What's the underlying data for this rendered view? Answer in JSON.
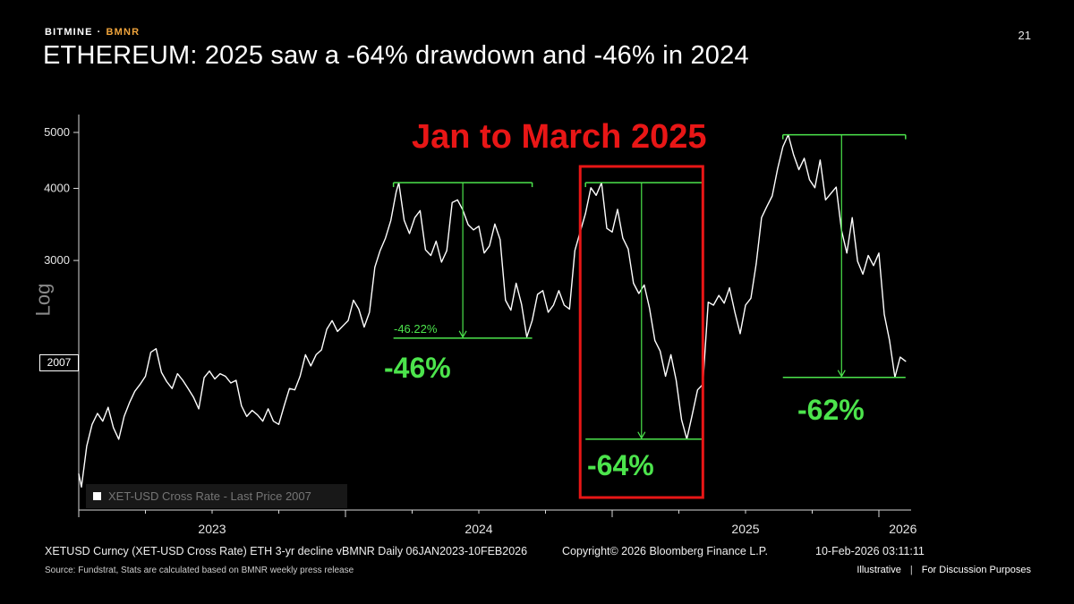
{
  "header": {
    "brand_left": "BITMINE",
    "brand_sep": "·",
    "brand_right": "BMNR",
    "page_number": "21",
    "title": "ETHEREUM: 2025 saw a -64% drawdown and -46% in 2024"
  },
  "chart_data": {
    "type": "line",
    "title": "ETHEREUM: 2025 saw a -64% drawdown and -46% in 2024",
    "series_name": "XET-USD Cross Rate - Last Price",
    "legend_label": "XET-USD Cross Rate - Last Price  2007",
    "x_axis": {
      "domain": [
        2023.0,
        2026.12
      ],
      "ticks": [
        {
          "t": 2023.5,
          "label": "2023"
        },
        {
          "t": 2024.5,
          "label": "2024"
        },
        {
          "t": 2025.5,
          "label": "2025"
        },
        {
          "t": 2026.09,
          "label": "2026"
        }
      ]
    },
    "y_axis": {
      "scale": "log",
      "label": "Log",
      "ticks": [
        5000,
        4000,
        3000
      ],
      "domain": [
        1100,
        5600
      ],
      "last_price": 2007
    },
    "points": [
      [
        2023.0,
        1280
      ],
      [
        2023.01,
        1215
      ],
      [
        2023.03,
        1430
      ],
      [
        2023.05,
        1560
      ],
      [
        2023.07,
        1630
      ],
      [
        2023.09,
        1580
      ],
      [
        2023.11,
        1670
      ],
      [
        2023.13,
        1540
      ],
      [
        2023.15,
        1470
      ],
      [
        2023.17,
        1610
      ],
      [
        2023.19,
        1700
      ],
      [
        2023.21,
        1780
      ],
      [
        2023.23,
        1830
      ],
      [
        2023.25,
        1890
      ],
      [
        2023.27,
        2080
      ],
      [
        2023.29,
        2110
      ],
      [
        2023.31,
        1920
      ],
      [
        2023.33,
        1850
      ],
      [
        2023.35,
        1800
      ],
      [
        2023.37,
        1910
      ],
      [
        2023.39,
        1860
      ],
      [
        2023.41,
        1800
      ],
      [
        2023.43,
        1740
      ],
      [
        2023.45,
        1660
      ],
      [
        2023.47,
        1880
      ],
      [
        2023.49,
        1930
      ],
      [
        2023.51,
        1870
      ],
      [
        2023.53,
        1910
      ],
      [
        2023.55,
        1890
      ],
      [
        2023.57,
        1840
      ],
      [
        2023.59,
        1860
      ],
      [
        2023.61,
        1680
      ],
      [
        2023.63,
        1610
      ],
      [
        2023.65,
        1650
      ],
      [
        2023.67,
        1620
      ],
      [
        2023.69,
        1580
      ],
      [
        2023.71,
        1660
      ],
      [
        2023.73,
        1580
      ],
      [
        2023.75,
        1560
      ],
      [
        2023.77,
        1680
      ],
      [
        2023.79,
        1800
      ],
      [
        2023.81,
        1790
      ],
      [
        2023.83,
        1890
      ],
      [
        2023.85,
        2060
      ],
      [
        2023.87,
        1970
      ],
      [
        2023.89,
        2060
      ],
      [
        2023.91,
        2100
      ],
      [
        2023.93,
        2280
      ],
      [
        2023.95,
        2360
      ],
      [
        2023.97,
        2260
      ],
      [
        2023.99,
        2310
      ],
      [
        2024.01,
        2360
      ],
      [
        2024.03,
        2560
      ],
      [
        2024.05,
        2470
      ],
      [
        2024.07,
        2300
      ],
      [
        2024.09,
        2440
      ],
      [
        2024.11,
        2920
      ],
      [
        2024.13,
        3120
      ],
      [
        2024.15,
        3280
      ],
      [
        2024.17,
        3520
      ],
      [
        2024.19,
        3940
      ],
      [
        2024.2,
        4093
      ],
      [
        2024.22,
        3520
      ],
      [
        2024.24,
        3340
      ],
      [
        2024.26,
        3560
      ],
      [
        2024.28,
        3660
      ],
      [
        2024.3,
        3130
      ],
      [
        2024.32,
        3060
      ],
      [
        2024.34,
        3240
      ],
      [
        2024.36,
        2980
      ],
      [
        2024.38,
        3120
      ],
      [
        2024.4,
        3780
      ],
      [
        2024.42,
        3820
      ],
      [
        2024.44,
        3670
      ],
      [
        2024.46,
        3460
      ],
      [
        2024.48,
        3390
      ],
      [
        2024.5,
        3440
      ],
      [
        2024.52,
        3090
      ],
      [
        2024.54,
        3180
      ],
      [
        2024.56,
        3470
      ],
      [
        2024.58,
        3260
      ],
      [
        2024.6,
        2560
      ],
      [
        2024.62,
        2460
      ],
      [
        2024.64,
        2740
      ],
      [
        2024.66,
        2520
      ],
      [
        2024.68,
        2210
      ],
      [
        2024.7,
        2360
      ],
      [
        2024.72,
        2620
      ],
      [
        2024.74,
        2660
      ],
      [
        2024.76,
        2440
      ],
      [
        2024.78,
        2510
      ],
      [
        2024.8,
        2660
      ],
      [
        2024.82,
        2510
      ],
      [
        2024.84,
        2470
      ],
      [
        2024.86,
        3120
      ],
      [
        2024.88,
        3360
      ],
      [
        2024.9,
        3620
      ],
      [
        2024.92,
        4010
      ],
      [
        2024.94,
        3890
      ],
      [
        2024.96,
        4093
      ],
      [
        2024.98,
        3410
      ],
      [
        2025.0,
        3360
      ],
      [
        2025.02,
        3680
      ],
      [
        2025.04,
        3280
      ],
      [
        2025.06,
        3140
      ],
      [
        2025.08,
        2740
      ],
      [
        2025.1,
        2630
      ],
      [
        2025.12,
        2720
      ],
      [
        2025.14,
        2480
      ],
      [
        2025.16,
        2180
      ],
      [
        2025.18,
        2090
      ],
      [
        2025.2,
        1890
      ],
      [
        2025.22,
        2060
      ],
      [
        2025.24,
        1860
      ],
      [
        2025.26,
        1590
      ],
      [
        2025.28,
        1471
      ],
      [
        2025.3,
        1620
      ],
      [
        2025.32,
        1790
      ],
      [
        2025.34,
        1830
      ],
      [
        2025.36,
        2540
      ],
      [
        2025.38,
        2510
      ],
      [
        2025.4,
        2610
      ],
      [
        2025.42,
        2530
      ],
      [
        2025.44,
        2690
      ],
      [
        2025.46,
        2440
      ],
      [
        2025.48,
        2240
      ],
      [
        2025.5,
        2510
      ],
      [
        2025.52,
        2580
      ],
      [
        2025.54,
        2960
      ],
      [
        2025.56,
        3560
      ],
      [
        2025.58,
        3720
      ],
      [
        2025.6,
        3880
      ],
      [
        2025.62,
        4320
      ],
      [
        2025.64,
        4720
      ],
      [
        2025.66,
        4953
      ],
      [
        2025.68,
        4580
      ],
      [
        2025.7,
        4310
      ],
      [
        2025.72,
        4510
      ],
      [
        2025.74,
        4140
      ],
      [
        2025.76,
        4010
      ],
      [
        2025.78,
        4480
      ],
      [
        2025.8,
        3820
      ],
      [
        2025.82,
        3920
      ],
      [
        2025.84,
        4020
      ],
      [
        2025.86,
        3380
      ],
      [
        2025.88,
        3090
      ],
      [
        2025.9,
        3560
      ],
      [
        2025.92,
        2990
      ],
      [
        2025.94,
        2840
      ],
      [
        2025.96,
        3060
      ],
      [
        2025.98,
        2940
      ],
      [
        2026.0,
        3090
      ],
      [
        2026.02,
        2420
      ],
      [
        2026.04,
        2180
      ],
      [
        2026.06,
        1882
      ],
      [
        2026.08,
        2040
      ],
      [
        2026.1,
        2007
      ]
    ],
    "drawdowns": [
      {
        "t0": 2024.18,
        "t1": 2024.7,
        "peak_price": 4093,
        "trough_price": 2201,
        "arrow_t": 2024.44,
        "label": "-46%",
        "detail_label": "-46.22%"
      },
      {
        "t0": 2024.9,
        "t1": 2025.34,
        "peak_price": 4093,
        "trough_price": 1471,
        "arrow_t": 2025.11,
        "label": "-64%",
        "detail_label": ""
      },
      {
        "t0": 2025.64,
        "t1": 2026.1,
        "peak_price": 4953,
        "trough_price": 1882,
        "arrow_t": 2025.86,
        "label": "-62%",
        "detail_label": ""
      }
    ],
    "highlight_box": {
      "t0": 2024.88,
      "t1": 2025.34,
      "label": "Jan to March 2025"
    },
    "colors": {
      "background": "#000000",
      "line": "#ffffff",
      "drawdown_green": "#4ce44c",
      "highlight_red": "#e81616",
      "brand_gold": "#f0a43c",
      "axis": "#d9d9d9"
    }
  },
  "footer": {
    "left": "XETUSD Curncy (XET-USD Cross Rate) ETH 3-yr decline vBMNR Daily 06JAN2023-10FEB2026",
    "center": "Copyright© 2026 Bloomberg Finance L.P.",
    "right": "10-Feb-2026 03:11:11",
    "source": "Source: Fundstrat, Stats are calculated based on BMNR weekly press release",
    "disclaimer_left": "Illustrative",
    "disclaimer_sep": "|",
    "disclaimer_right": "For Discussion Purposes"
  }
}
